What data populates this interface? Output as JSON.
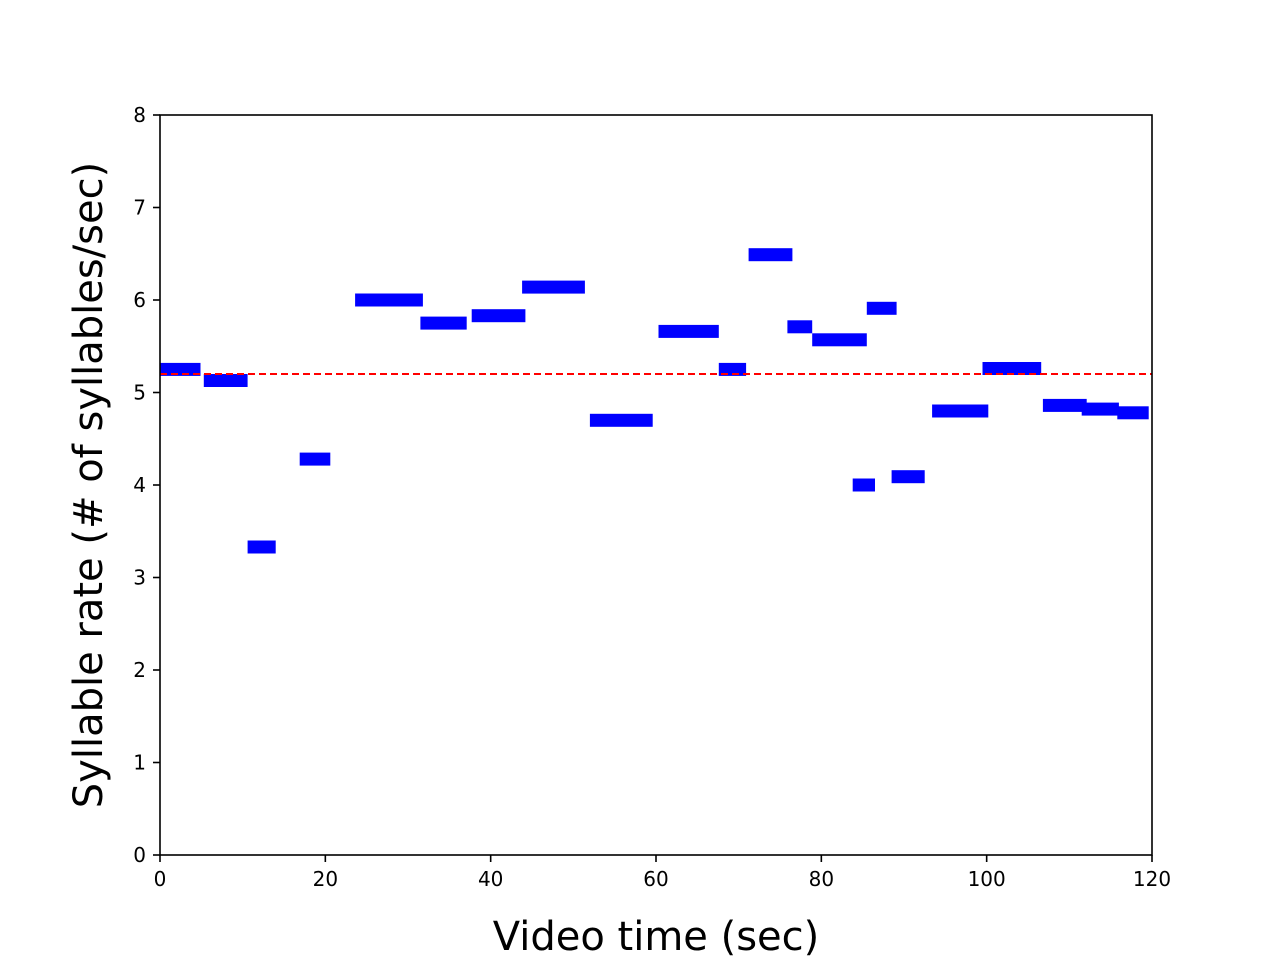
{
  "chart_data": {
    "type": "bar",
    "subtype": "horizontal-segments",
    "title": "",
    "xlabel": "Video time (sec)",
    "ylabel": "Syllable rate (# of syllables/sec)",
    "xlim": [
      0,
      120
    ],
    "ylim": [
      0,
      8
    ],
    "xticks": [
      0,
      20,
      40,
      60,
      80,
      100,
      120
    ],
    "yticks": [
      0,
      1,
      2,
      3,
      4,
      5,
      6,
      7,
      8
    ],
    "grid": false,
    "legend": "none",
    "series": [
      {
        "color": "#0000ff",
        "segments": [
          {
            "x_start": 0.0,
            "x_end": 4.9,
            "y": 5.25
          },
          {
            "x_start": 5.3,
            "x_end": 10.6,
            "y": 5.13
          },
          {
            "x_start": 10.6,
            "x_end": 14.0,
            "y": 3.33
          },
          {
            "x_start": 16.9,
            "x_end": 20.6,
            "y": 4.28
          },
          {
            "x_start": 23.6,
            "x_end": 31.8,
            "y": 6.0
          },
          {
            "x_start": 31.5,
            "x_end": 37.1,
            "y": 5.75
          },
          {
            "x_start": 37.7,
            "x_end": 44.2,
            "y": 5.83
          },
          {
            "x_start": 43.8,
            "x_end": 51.4,
            "y": 6.14
          },
          {
            "x_start": 52.0,
            "x_end": 59.6,
            "y": 4.7
          },
          {
            "x_start": 60.3,
            "x_end": 67.6,
            "y": 5.66
          },
          {
            "x_start": 67.6,
            "x_end": 70.9,
            "y": 5.25
          },
          {
            "x_start": 71.2,
            "x_end": 76.5,
            "y": 6.49
          },
          {
            "x_start": 75.9,
            "x_end": 78.9,
            "y": 5.71
          },
          {
            "x_start": 78.9,
            "x_end": 85.5,
            "y": 5.57
          },
          {
            "x_start": 83.8,
            "x_end": 86.5,
            "y": 4.0
          },
          {
            "x_start": 85.5,
            "x_end": 89.1,
            "y": 5.91
          },
          {
            "x_start": 88.5,
            "x_end": 92.5,
            "y": 4.09
          },
          {
            "x_start": 93.4,
            "x_end": 100.2,
            "y": 4.8
          },
          {
            "x_start": 99.5,
            "x_end": 106.6,
            "y": 5.26
          },
          {
            "x_start": 106.8,
            "x_end": 112.1,
            "y": 4.86
          },
          {
            "x_start": 111.5,
            "x_end": 116.0,
            "y": 4.82
          },
          {
            "x_start": 115.8,
            "x_end": 119.6,
            "y": 4.78
          }
        ]
      }
    ],
    "reference_line": {
      "y": 5.2,
      "style": "dashed",
      "color": "#ff0000"
    }
  }
}
